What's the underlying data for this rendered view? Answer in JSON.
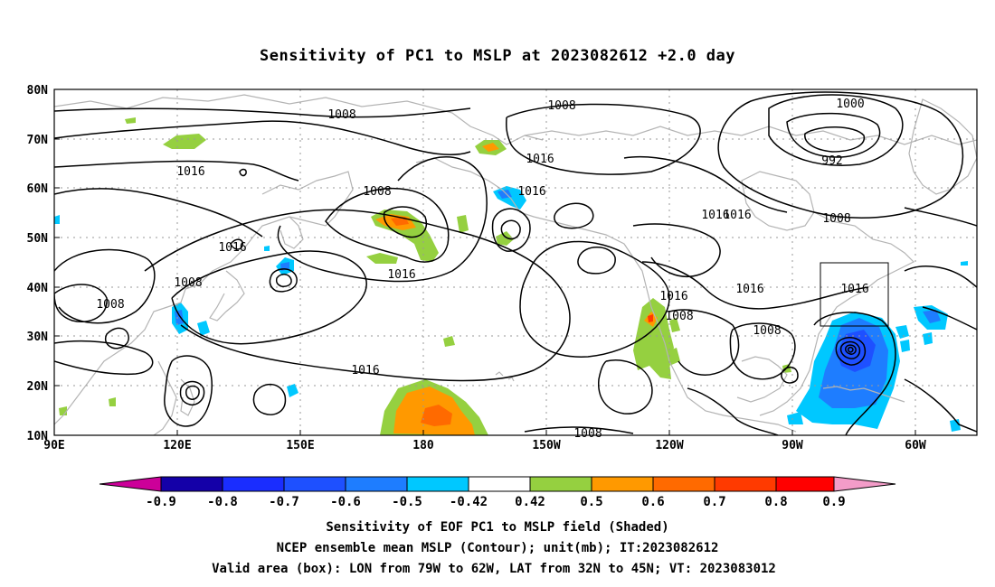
{
  "title": "Sensitivity of PC1 to MSLP at 2023082612 +2.0 day",
  "lat_labels": [
    "80N",
    "70N",
    "60N",
    "50N",
    "40N",
    "30N",
    "20N",
    "10N"
  ],
  "lon_labels": [
    "90E",
    "120E",
    "150E",
    "180",
    "150W",
    "120W",
    "90W",
    "60W"
  ],
  "contour_labels": [
    "1008",
    "1016",
    "1008",
    "1016",
    "1008",
    "1008",
    "1016",
    "1016",
    "1016",
    "1016",
    "1008",
    "1016",
    "1016",
    "1008",
    "1016",
    "1016",
    "1008",
    "1000",
    "992",
    "1016",
    "1008",
    "1008"
  ],
  "colorbar": {
    "labels": [
      "-0.9",
      "-0.8",
      "-0.7",
      "-0.6",
      "-0.5",
      "-0.42",
      "0.42",
      "0.5",
      "0.6",
      "0.7",
      "0.8",
      "0.9"
    ],
    "colors": [
      "#cc0099",
      "#1400a8",
      "#1a2dff",
      "#1e50ff",
      "#1e7dff",
      "#00c8ff",
      "#ffffff",
      "#95d040",
      "#ff9900",
      "#ff6a00",
      "#ff3a00",
      "#ff0000",
      "#f39cc8"
    ]
  },
  "shading_colors": {
    "green": "#95d040",
    "orange": "#ff9900",
    "dark_orange": "#ff6a00",
    "light_blue": "#00c8ff",
    "blue": "#1e7dff",
    "mid_blue": "#1e50ff",
    "dark_blue": "#1a2dff",
    "coast": "#b4b4b4",
    "contour": "#000000"
  },
  "valid_box": {
    "lon_range": [
      -79,
      -62
    ],
    "lat_range": [
      32,
      45
    ]
  },
  "footer": {
    "line1": "Sensitivity of EOF PC1 to MSLP field (Shaded)",
    "line2": "NCEP ensemble mean MSLP (Contour); unit(mb); IT:2023082612",
    "line3": "Valid area (box): LON from 79W to 62W, LAT from 32N to 45N; VT: 2023083012"
  }
}
